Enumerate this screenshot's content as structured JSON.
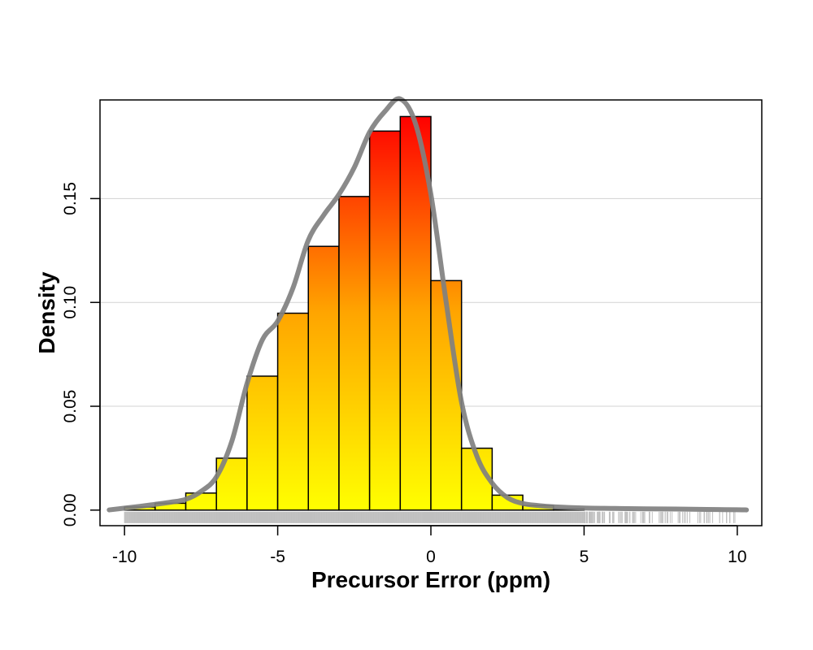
{
  "chart_data": {
    "type": "bar",
    "title": "",
    "xlabel": "Precursor Error (ppm)",
    "ylabel": "Density",
    "xlim": [
      -10.8,
      10.8
    ],
    "ylim": [
      -0.0075,
      0.1975
    ],
    "x_ticks": [
      -10,
      -5,
      0,
      5,
      10
    ],
    "x_tick_labels": [
      "-10",
      "-5",
      "0",
      "5",
      "10"
    ],
    "y_ticks": [
      0,
      0.05,
      0.1,
      0.15
    ],
    "y_tick_labels": [
      "0.00",
      "0.05",
      "0.10",
      "0.15"
    ],
    "grid": "horizontal",
    "bin_edges": [
      -10,
      -9,
      -8,
      -7,
      -6,
      -5,
      -4,
      -3,
      -2,
      -1,
      0,
      1,
      2,
      3,
      4,
      5
    ],
    "values": [
      0.0015,
      0.0033,
      0.0082,
      0.025,
      0.0645,
      0.0948,
      0.127,
      0.151,
      0.1825,
      0.1895,
      0.1105,
      0.0298,
      0.0072,
      0.0022,
      0.0006
    ],
    "gradient_colors": [
      "#ff0000",
      "#ffa500",
      "#ffff00"
    ],
    "density_curve": {
      "color": "#808080",
      "x": [
        -10.5,
        -9.5,
        -9,
        -8.5,
        -8,
        -7.5,
        -7,
        -6.5,
        -6,
        -5.5,
        -5,
        -4.5,
        -4,
        -3.5,
        -3,
        -2.5,
        -2,
        -1.5,
        -1,
        -0.5,
        0,
        0.5,
        1,
        1.5,
        2,
        2.5,
        3,
        3.5,
        4,
        5,
        6,
        7,
        8,
        9,
        10,
        10.3
      ],
      "y": [
        0.0001,
        0.0018,
        0.0028,
        0.0038,
        0.0052,
        0.009,
        0.016,
        0.033,
        0.061,
        0.082,
        0.091,
        0.107,
        0.13,
        0.142,
        0.152,
        0.165,
        0.182,
        0.192,
        0.198,
        0.186,
        0.152,
        0.1,
        0.052,
        0.026,
        0.013,
        0.006,
        0.0032,
        0.0022,
        0.0016,
        0.001,
        0.0008,
        0.0006,
        0.0005,
        0.0003,
        0.0002,
        0.0001
      ]
    },
    "rug": {
      "color": "#c0c0c0",
      "range": [
        -10,
        10
      ]
    }
  }
}
